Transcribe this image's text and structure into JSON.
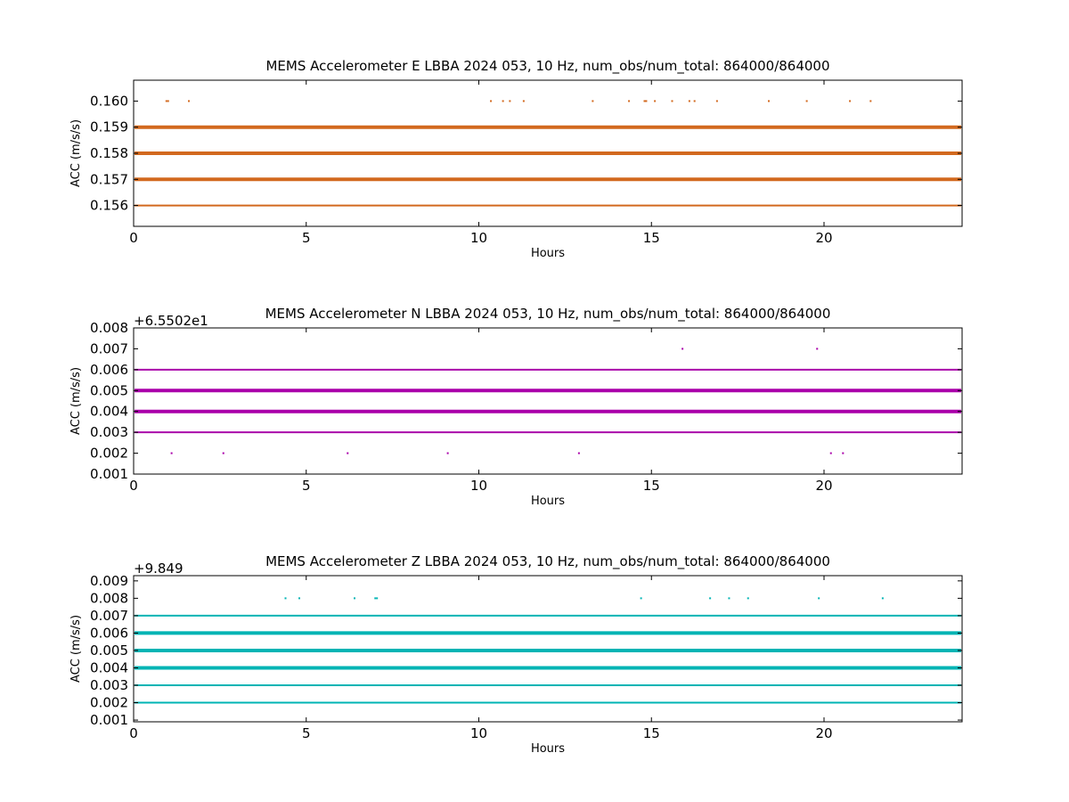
{
  "chart_data": [
    {
      "type": "scatter",
      "title": "MEMS Accelerometer E LBBA 2024 053, 10 Hz, num_obs/num_total: 864000/864000",
      "xlabel": "Hours",
      "ylabel": "ACC (m/s/s)",
      "offset_label": "",
      "xlim": [
        0,
        24
      ],
      "ylim": [
        0.1552,
        0.1608
      ],
      "xticks": [
        0,
        5,
        10,
        15,
        20
      ],
      "yticks": [
        0.156,
        0.157,
        0.158,
        0.159,
        0.16
      ],
      "color": "#d2691e",
      "levels": [
        {
          "y": 0.156,
          "x_range": [
            0,
            24
          ],
          "weight": 1
        },
        {
          "y": 0.157,
          "x_range": [
            0,
            24
          ],
          "weight": 2
        },
        {
          "y": 0.158,
          "x_range": [
            0,
            24
          ],
          "weight": 2
        },
        {
          "y": 0.159,
          "x_range": [
            0,
            24
          ],
          "weight": 2
        }
      ],
      "sparse_points": [
        {
          "y": 0.16,
          "x": [
            0.95,
            1.0,
            1.6,
            10.35,
            10.7,
            10.9,
            11.3,
            13.3,
            14.35,
            14.8,
            14.85,
            15.1,
            15.6,
            16.1,
            16.25,
            16.9,
            18.4,
            19.5,
            20.75,
            21.35
          ]
        }
      ]
    },
    {
      "type": "scatter",
      "title": "MEMS Accelerometer N LBBA 2024 053, 10 Hz, num_obs/num_total: 864000/864000",
      "xlabel": "Hours",
      "ylabel": "ACC (m/s/s)",
      "offset_label": "+6.5502e1",
      "xlim": [
        0,
        24
      ],
      "ylim": [
        0.001,
        0.008
      ],
      "xticks": [
        0,
        5,
        10,
        15,
        20
      ],
      "yticks": [
        0.001,
        0.002,
        0.003,
        0.004,
        0.005,
        0.006,
        0.007,
        0.008
      ],
      "color": "#aa00aa",
      "levels": [
        {
          "y": 0.003,
          "x_range": [
            0,
            24
          ],
          "weight": 1
        },
        {
          "y": 0.004,
          "x_range": [
            0,
            24
          ],
          "weight": 2
        },
        {
          "y": 0.005,
          "x_range": [
            0,
            24
          ],
          "weight": 2
        },
        {
          "y": 0.006,
          "x_range": [
            0,
            24
          ],
          "weight": 1
        }
      ],
      "sparse_points": [
        {
          "y": 0.007,
          "x": [
            15.9,
            19.8
          ]
        },
        {
          "y": 0.002,
          "x": [
            1.1,
            2.6,
            6.2,
            9.1,
            12.9,
            20.2,
            20.55
          ]
        }
      ]
    },
    {
      "type": "scatter",
      "title": "MEMS Accelerometer Z LBBA 2024 053, 10 Hz, num_obs/num_total: 864000/864000",
      "xlabel": "Hours",
      "ylabel": "ACC (m/s/s)",
      "offset_label": "+9.849",
      "xlim": [
        0,
        24
      ],
      "ylim": [
        0.0009,
        0.0093
      ],
      "xticks": [
        0,
        5,
        10,
        15,
        20
      ],
      "yticks": [
        0.001,
        0.002,
        0.003,
        0.004,
        0.005,
        0.006,
        0.007,
        0.008,
        0.009
      ],
      "color": "#00b4b4",
      "levels": [
        {
          "y": 0.002,
          "x_range": [
            0,
            24
          ],
          "weight": 1
        },
        {
          "y": 0.003,
          "x_range": [
            0,
            24
          ],
          "weight": 1
        },
        {
          "y": 0.004,
          "x_range": [
            0,
            24
          ],
          "weight": 2
        },
        {
          "y": 0.005,
          "x_range": [
            0,
            24
          ],
          "weight": 2
        },
        {
          "y": 0.006,
          "x_range": [
            0,
            24
          ],
          "weight": 2
        },
        {
          "y": 0.007,
          "x_range": [
            0,
            24
          ],
          "weight": 1
        }
      ],
      "sparse_points": [
        {
          "y": 0.008,
          "x": [
            4.4,
            4.8,
            6.4,
            7.0,
            7.05,
            14.7,
            16.7,
            17.25,
            17.8,
            19.85,
            21.7
          ]
        }
      ]
    }
  ]
}
